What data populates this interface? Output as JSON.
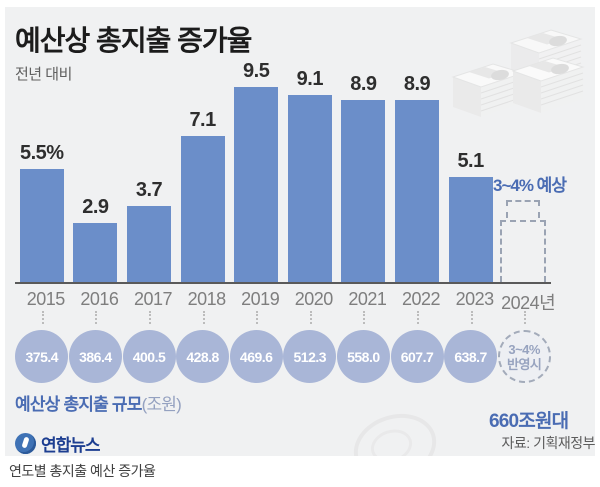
{
  "title": "예산상 총지출 증가율",
  "subtitle": "전년 대비",
  "chart_data": {
    "type": "bar",
    "title": "예산상 총지출 증가율",
    "subtitle": "전년 대비",
    "categories": [
      "2015",
      "2016",
      "2017",
      "2018",
      "2019",
      "2020",
      "2021",
      "2022",
      "2023",
      "2024년"
    ],
    "growth_values": [
      5.5,
      2.9,
      3.7,
      7.1,
      9.5,
      9.1,
      8.9,
      8.9,
      5.1,
      null
    ],
    "growth_labels": [
      "5.5%",
      "2.9",
      "3.7",
      "7.1",
      "9.5",
      "9.1",
      "8.9",
      "8.9",
      "5.1",
      ""
    ],
    "forecast": {
      "year": "2024년",
      "range": [
        3,
        4
      ],
      "label": "3~4% 예상"
    },
    "expenditure_labels": [
      "375.4",
      "386.4",
      "400.5",
      "428.8",
      "469.6",
      "512.3",
      "558.0",
      "607.7",
      "638.7"
    ],
    "expenditure_values": [
      375.4,
      386.4,
      400.5,
      428.8,
      469.6,
      512.3,
      558.0,
      607.7,
      638.7
    ],
    "forecast_circle": {
      "line1": "3~4%",
      "line2": "반영시"
    },
    "expenditure_series_label_main": "예산상 총지출 규모",
    "expenditure_series_label_unit": "(조원)",
    "forecast_total": "660조원대",
    "ylabel": "%",
    "ylim": [
      0,
      10
    ],
    "grid": false,
    "legend": false,
    "bar_color": "#6b8ec9",
    "circle_color": "#a9b6d7",
    "accent_blue": "#4a6cb3"
  },
  "footer": {
    "logo_text": "연합뉴스",
    "source": "자료: 기획재정부"
  },
  "caption": "연도별 총지출 예산 증가율"
}
